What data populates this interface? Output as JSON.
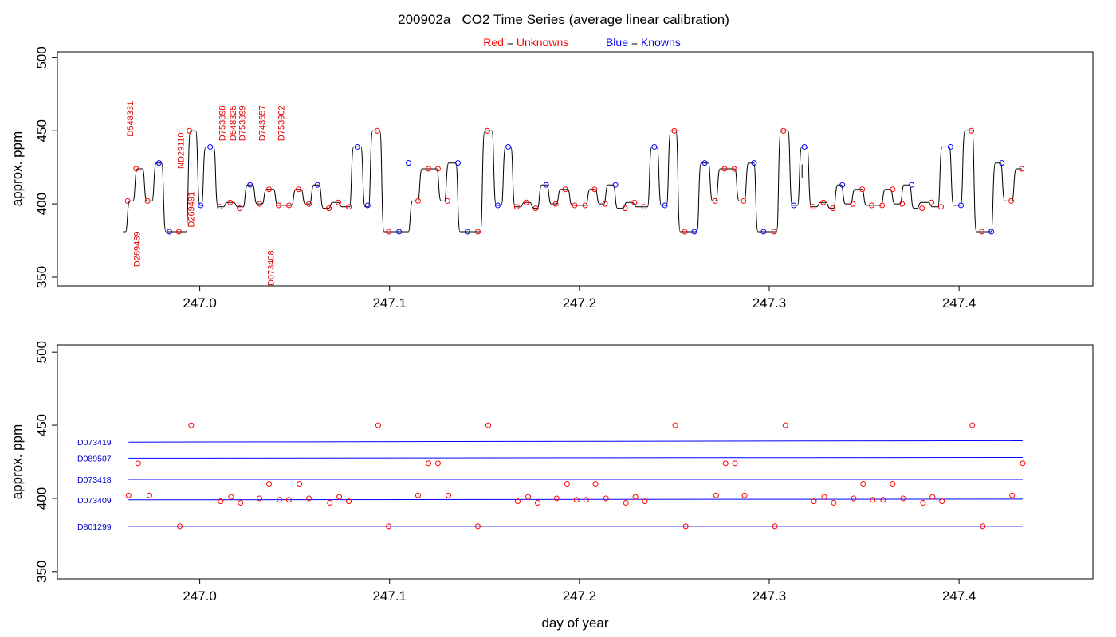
{
  "title": "200902a   CO2 Time Series (average linear calibration)",
  "legend": {
    "red_word": "Red",
    "red_eq": "=",
    "red_label": "Unknowns",
    "blue_word": "Blue",
    "blue_eq": "=",
    "blue_label": "Knowns",
    "red_color": "#ff0000",
    "blue_color": "#0000ff"
  },
  "chart_data": [
    {
      "type": "line",
      "panel": "top",
      "title": "200902a   CO2 Time Series (average linear calibration)",
      "xlabel": "",
      "ylabel": "approx. ppm",
      "xlim": [
        246.925,
        247.4705
      ],
      "ylim": [
        344,
        504
      ],
      "xticks": [
        247.0,
        247.1,
        247.2,
        247.3,
        247.4
      ],
      "xtick_labels": [
        "247.0",
        "247.1",
        "247.2",
        "247.3",
        "247.4"
      ],
      "yticks": [
        350,
        400,
        450,
        500
      ],
      "ytick_labels": [
        "350",
        "400",
        "450",
        "500"
      ],
      "grid": false,
      "legend": "top-center",
      "steps": [
        [
          246.9595,
          381
        ],
        [
          246.962,
          402
        ],
        [
          246.966,
          424
        ],
        [
          246.971,
          402
        ],
        [
          246.976,
          428
        ],
        [
          246.981,
          381
        ],
        [
          246.991,
          381
        ],
        [
          246.994,
          450
        ],
        [
          246.999,
          399
        ],
        [
          247.002,
          439
        ],
        [
          247.0085,
          398
        ],
        [
          247.0135,
          401
        ],
        [
          247.019,
          398
        ],
        [
          247.024,
          413
        ],
        [
          247.029,
          400
        ],
        [
          247.034,
          410
        ],
        [
          247.04,
          399
        ],
        [
          247.0495,
          410
        ],
        [
          247.0545,
          400
        ],
        [
          247.059,
          413
        ],
        [
          247.064,
          397
        ],
        [
          247.069,
          401
        ],
        [
          247.074,
          398
        ],
        [
          247.08,
          439
        ],
        [
          247.086,
          398
        ],
        [
          247.09,
          450
        ],
        [
          247.096,
          381
        ],
        [
          247.111,
          402
        ],
        [
          247.116,
          424
        ],
        [
          247.126,
          402
        ],
        [
          247.13,
          428
        ],
        [
          247.136,
          381
        ],
        [
          247.149,
          450
        ],
        [
          247.155,
          399
        ],
        [
          247.16,
          439
        ],
        [
          247.165,
          398
        ],
        [
          247.17,
          401
        ],
        [
          247.175,
          397
        ],
        [
          247.179,
          413
        ],
        [
          247.184,
          400
        ],
        [
          247.189,
          410
        ],
        [
          247.195,
          399
        ],
        [
          247.2045,
          410
        ],
        [
          247.2095,
          400
        ],
        [
          247.214,
          413
        ],
        [
          247.219,
          397
        ],
        [
          247.224,
          401
        ],
        [
          247.229,
          398
        ],
        [
          247.237,
          439
        ],
        [
          247.242,
          399
        ],
        [
          247.247,
          450
        ],
        [
          247.252,
          381
        ],
        [
          247.263,
          428
        ],
        [
          247.269,
          402
        ],
        [
          247.273,
          424
        ],
        [
          247.283,
          402
        ],
        [
          247.288,
          428
        ],
        [
          247.293,
          381
        ],
        [
          247.305,
          450
        ],
        [
          247.311,
          399
        ],
        [
          247.316,
          439
        ],
        [
          247.321,
          398
        ],
        [
          247.326,
          401
        ],
        [
          247.331,
          397
        ],
        [
          247.335,
          413
        ],
        [
          247.339,
          400
        ],
        [
          247.344,
          410
        ],
        [
          247.35,
          399
        ],
        [
          247.36,
          410
        ],
        [
          247.365,
          400
        ],
        [
          247.37,
          413
        ],
        [
          247.375,
          397
        ],
        [
          247.379,
          401
        ],
        [
          247.385,
          398
        ],
        [
          247.39,
          439
        ],
        [
          247.396,
          399
        ],
        [
          247.402,
          450
        ],
        [
          247.408,
          381
        ],
        [
          247.418,
          428
        ],
        [
          247.423,
          402
        ],
        [
          247.429,
          424
        ],
        [
          247.432,
          424
        ]
      ],
      "spikes": [
        [
          247.1713,
          406
        ],
        [
          247.3173,
          427
        ]
      ],
      "unknowns": [
        [
          246.962,
          402
        ],
        [
          246.9665,
          424
        ],
        [
          246.9725,
          402
        ],
        [
          246.989,
          381
        ],
        [
          246.9945,
          450
        ],
        [
          247.0105,
          398
        ],
        [
          247.016,
          401
        ],
        [
          247.021,
          397
        ],
        [
          247.0315,
          400
        ],
        [
          247.0365,
          410
        ],
        [
          247.0415,
          399
        ],
        [
          247.047,
          399
        ],
        [
          247.052,
          410
        ],
        [
          247.0575,
          400
        ],
        [
          247.068,
          397
        ],
        [
          247.073,
          401
        ],
        [
          247.0785,
          398
        ],
        [
          247.0935,
          450
        ],
        [
          247.0995,
          381
        ],
        [
          247.115,
          402
        ],
        [
          247.1205,
          424
        ],
        [
          247.1255,
          424
        ],
        [
          247.1305,
          402
        ],
        [
          247.1465,
          381
        ],
        [
          247.1515,
          450
        ],
        [
          247.167,
          398
        ],
        [
          247.172,
          401
        ],
        [
          247.177,
          397
        ],
        [
          247.1875,
          400
        ],
        [
          247.1925,
          410
        ],
        [
          247.1975,
          399
        ],
        [
          247.203,
          399
        ],
        [
          247.208,
          410
        ],
        [
          247.2135,
          400
        ],
        [
          247.224,
          397
        ],
        [
          247.229,
          401
        ],
        [
          247.234,
          398
        ],
        [
          247.25,
          450
        ],
        [
          247.2555,
          381
        ],
        [
          247.2715,
          402
        ],
        [
          247.2765,
          424
        ],
        [
          247.2815,
          424
        ],
        [
          247.2865,
          402
        ],
        [
          247.3025,
          381
        ],
        [
          247.3075,
          450
        ],
        [
          247.323,
          398
        ],
        [
          247.3285,
          401
        ],
        [
          247.3335,
          397
        ],
        [
          247.344,
          400
        ],
        [
          247.349,
          410
        ],
        [
          247.354,
          399
        ],
        [
          247.3595,
          399
        ],
        [
          247.365,
          410
        ],
        [
          247.37,
          400
        ],
        [
          247.3805,
          397
        ],
        [
          247.3855,
          401
        ],
        [
          247.3905,
          398
        ],
        [
          247.4065,
          450
        ],
        [
          247.412,
          381
        ],
        [
          247.4275,
          402
        ],
        [
          247.433,
          424
        ]
      ],
      "knowns": [
        [
          246.9785,
          428
        ],
        [
          246.984,
          381
        ],
        [
          247.0005,
          399
        ],
        [
          247.0055,
          439
        ],
        [
          247.0265,
          413
        ],
        [
          247.062,
          413
        ],
        [
          247.083,
          439
        ],
        [
          247.0885,
          399
        ],
        [
          247.105,
          381
        ],
        [
          247.11,
          428
        ],
        [
          247.136,
          428
        ],
        [
          247.141,
          381
        ],
        [
          247.157,
          399
        ],
        [
          247.1625,
          439
        ],
        [
          247.1825,
          413
        ],
        [
          247.219,
          413
        ],
        [
          247.2395,
          439
        ],
        [
          247.245,
          399
        ],
        [
          247.2605,
          381
        ],
        [
          247.266,
          428
        ],
        [
          247.292,
          428
        ],
        [
          247.297,
          381
        ],
        [
          247.313,
          399
        ],
        [
          247.3185,
          439
        ],
        [
          247.3385,
          413
        ],
        [
          247.375,
          413
        ],
        [
          247.3955,
          439
        ],
        [
          247.401,
          399
        ],
        [
          247.417,
          381
        ],
        [
          247.4225,
          428
        ]
      ],
      "annotations": [
        {
          "text": "D548331",
          "x": 246.965,
          "y": 446
        },
        {
          "text": "ND29110",
          "x": 246.9915,
          "y": 424
        },
        {
          "text": "D269491",
          "x": 246.997,
          "y": 384
        },
        {
          "text": "D753898",
          "x": 247.0135,
          "y": 443
        },
        {
          "text": "D548325",
          "x": 247.019,
          "y": 443
        },
        {
          "text": "D753899",
          "x": 247.024,
          "y": 443
        },
        {
          "text": "D743657",
          "x": 247.0345,
          "y": 443
        },
        {
          "text": "D753902",
          "x": 247.0445,
          "y": 443
        },
        {
          "text": "D269489",
          "x": 246.9685,
          "y": 357
        },
        {
          "text": "D073408",
          "x": 247.039,
          "y": 344
        }
      ]
    },
    {
      "type": "scatter",
      "panel": "bottom",
      "title": "",
      "xlabel": "day of year",
      "ylabel": "approx. ppm",
      "xlim": [
        246.925,
        247.4705
      ],
      "ylim": [
        345,
        505
      ],
      "xticks": [
        247.0,
        247.1,
        247.2,
        247.3,
        247.4
      ],
      "xtick_labels": [
        "247.0",
        "247.1",
        "247.2",
        "247.3",
        "247.4"
      ],
      "yticks": [
        350,
        400,
        450,
        500
      ],
      "ytick_labels": [
        "350",
        "400",
        "450",
        "500"
      ],
      "grid": false,
      "references": [
        {
          "name": "D073419",
          "y_start": 438.5,
          "y_end": 439.5
        },
        {
          "name": "D089507",
          "y_start": 427.5,
          "y_end": 428.0
        },
        {
          "name": "D073418",
          "y_start": 413.0,
          "y_end": 413.0
        },
        {
          "name": "D073409",
          "y_start": 399.0,
          "y_end": 399.5
        },
        {
          "name": "D801299",
          "y_start": 381.0,
          "y_end": 381.0
        }
      ],
      "ref_x_range": [
        246.9625,
        247.4335
      ],
      "unknowns": [
        [
          246.9625,
          402
        ],
        [
          246.9675,
          424
        ],
        [
          246.9735,
          402
        ],
        [
          246.9895,
          381
        ],
        [
          246.9955,
          450
        ],
        [
          247.011,
          398
        ],
        [
          247.0165,
          401
        ],
        [
          247.0215,
          397
        ],
        [
          247.0315,
          400
        ],
        [
          247.0365,
          410
        ],
        [
          247.042,
          399
        ],
        [
          247.047,
          399
        ],
        [
          247.0525,
          410
        ],
        [
          247.0575,
          400
        ],
        [
          247.0685,
          397
        ],
        [
          247.0735,
          401
        ],
        [
          247.0785,
          398
        ],
        [
          247.094,
          450
        ],
        [
          247.0995,
          381
        ],
        [
          247.115,
          402
        ],
        [
          247.1205,
          424
        ],
        [
          247.1255,
          424
        ],
        [
          247.131,
          402
        ],
        [
          247.1465,
          381
        ],
        [
          247.152,
          450
        ],
        [
          247.1675,
          398
        ],
        [
          247.173,
          401
        ],
        [
          247.178,
          397
        ],
        [
          247.188,
          400
        ],
        [
          247.1935,
          410
        ],
        [
          247.1985,
          399
        ],
        [
          247.2035,
          399
        ],
        [
          247.2085,
          410
        ],
        [
          247.214,
          400
        ],
        [
          247.2245,
          397
        ],
        [
          247.2295,
          401
        ],
        [
          247.2345,
          398
        ],
        [
          247.2505,
          450
        ],
        [
          247.256,
          381
        ],
        [
          247.272,
          402
        ],
        [
          247.277,
          424
        ],
        [
          247.282,
          424
        ],
        [
          247.287,
          402
        ],
        [
          247.303,
          381
        ],
        [
          247.3085,
          450
        ],
        [
          247.3235,
          398
        ],
        [
          247.329,
          401
        ],
        [
          247.334,
          397
        ],
        [
          247.3445,
          400
        ],
        [
          247.3495,
          410
        ],
        [
          247.3545,
          399
        ],
        [
          247.36,
          399
        ],
        [
          247.365,
          410
        ],
        [
          247.3705,
          400
        ],
        [
          247.381,
          397
        ],
        [
          247.386,
          401
        ],
        [
          247.391,
          398
        ],
        [
          247.407,
          450
        ],
        [
          247.4125,
          381
        ],
        [
          247.428,
          402
        ],
        [
          247.4335,
          424
        ]
      ]
    }
  ]
}
